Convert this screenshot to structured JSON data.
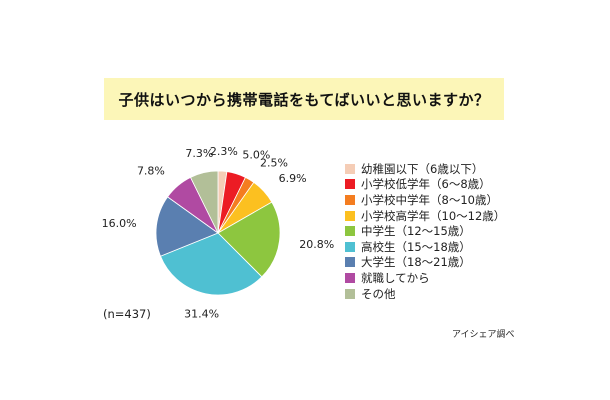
{
  "chart_data": {
    "type": "pie",
    "title": "子供はいつから携帯電話をもてばいいと思いますか？",
    "categories": [
      "幼稚園以下（6歳以下）",
      "小学校低学年（6〜8歳）",
      "小学校中学年（8〜10歳）",
      "小学校高学年（10〜12歳）",
      "中学生（12〜15歳）",
      "高校生（15〜18歳）",
      "大学生（18〜21歳）",
      "就職してから",
      "その他"
    ],
    "values": [
      2.3,
      5.0,
      2.5,
      6.9,
      20.8,
      31.4,
      16.0,
      7.8,
      7.3
    ],
    "value_labels": [
      "2.3%",
      "5.0%",
      "2.5%",
      "6.9%",
      "20.8%",
      "31.4%",
      "16.0%",
      "7.8%",
      "7.3%"
    ],
    "colors": [
      "#f5cdb6",
      "#ec1c24",
      "#f47d20",
      "#fcc020",
      "#8dc63f",
      "#4fc0d2",
      "#5a7fb0",
      "#b04aa2",
      "#b2bf98"
    ],
    "start_angle_deg": 0,
    "direction": "clockwise",
    "legend_position": "right"
  },
  "notes": {
    "sample_size": "(n=437)",
    "source": "アイシェア調べ"
  }
}
